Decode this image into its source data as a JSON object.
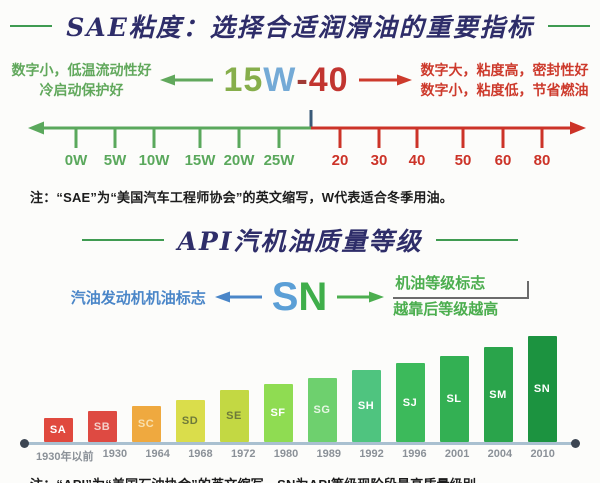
{
  "sae": {
    "title": "SAE粘度：选择合适润滑油的重要指标",
    "left_note_line1": "数字小，低温流动性好",
    "left_note_line2": "冷启动保护好",
    "grade": {
      "winter_number": "15",
      "winter_w": "W",
      "dash": "-",
      "summer_number": "40"
    },
    "right_note_line1": "数字大，粘度高，密封性好",
    "right_note_line2": "数字小，粘度低，节省燃油",
    "winter_ticks": [
      "0W",
      "5W",
      "10W",
      "15W",
      "20W",
      "25W"
    ],
    "summer_ticks": [
      "20",
      "30",
      "40",
      "50",
      "60",
      "80"
    ],
    "footnote": "注：“SAE”为“美国汽车工程师协会”的英文缩写，W代表适合冬季用油。"
  },
  "api": {
    "title": "API汽机油质量等级",
    "left_label": "汽油发动机机油标志",
    "grade": {
      "s": "S",
      "n": "N"
    },
    "right_label_line1": "机油等级标志",
    "right_label_line2": "越靠后等级越高",
    "footnote": "注：“API”为“美国石油协会”的英文缩写，SN为API等级现阶段最高质量级别。"
  },
  "colors": {
    "title_navy": "#2e2d69",
    "rule_green": "#3f9b51",
    "axis_green": "#5aa85c",
    "axis_red": "#cc3328",
    "connector_navy": "#3a5a78",
    "chart_axis": "#a9c0d0",
    "chart_axis_dot": "#3d4653"
  },
  "chart_data": {
    "type": "bar",
    "title": "API汽机油质量等级",
    "categories": [
      "1930年以前",
      "1930",
      "1964",
      "1968",
      "1972",
      "1980",
      "1989",
      "1992",
      "1996",
      "2001",
      "2004",
      "2010"
    ],
    "bar_labels": [
      "SA",
      "SB",
      "SC",
      "SD",
      "SE",
      "SF",
      "SG",
      "SH",
      "SJ",
      "SL",
      "SM",
      "SN"
    ],
    "values": [
      24,
      31,
      36,
      42,
      52,
      58,
      64,
      72,
      79,
      86,
      95,
      106
    ],
    "value_note": "relative bar heights (no numeric y-axis in source; grades increase monotonically from SA oldest to SN newest)",
    "colors": [
      "#e0493e",
      "#de4a42",
      "#efa93f",
      "#dadd4b",
      "#c3d843",
      "#8fdc52",
      "#6ed06e",
      "#4fc47f",
      "#3cba5b",
      "#33b053",
      "#2aa44b",
      "#1c9340"
    ],
    "label_colors": [
      "#ffffff",
      "#f3cfc9",
      "#f8e0ae",
      "#6e7a3a",
      "#6e7a3a",
      "#ffffff",
      "#e7f7e4",
      "#ffffff",
      "#ffffff",
      "#ffffff",
      "#ffffff",
      "#ffffff"
    ],
    "xlabel": "",
    "ylabel": "",
    "grid": false,
    "legend": false
  },
  "sae_scale_data": {
    "type": "number-line",
    "winter_segment": {
      "color": "#5aa85c",
      "ticks": [
        "0W",
        "5W",
        "10W",
        "15W",
        "20W",
        "25W"
      ],
      "arrow": "left"
    },
    "summer_segment": {
      "color": "#cc3328",
      "ticks": [
        "20",
        "30",
        "40",
        "50",
        "60",
        "80"
      ],
      "arrow": "right"
    }
  }
}
